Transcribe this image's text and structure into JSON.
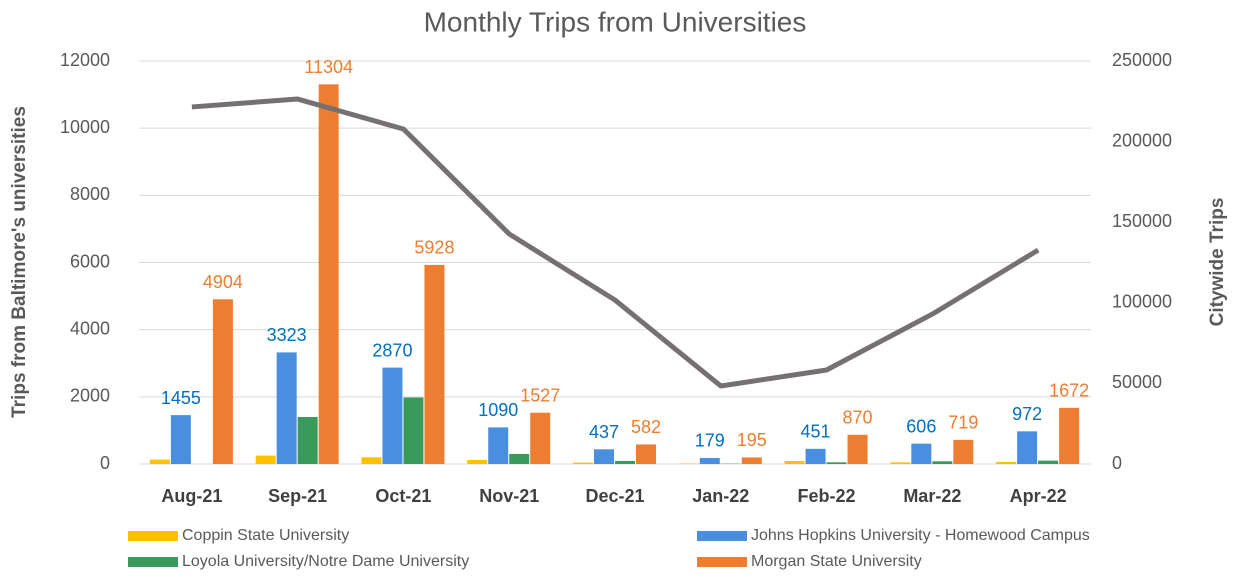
{
  "chart_data": {
    "type": "bar",
    "title": "Monthly Trips from Universities",
    "y_label": "Trips from Baltimore's universities",
    "y2_label": "Citywide Trips",
    "categories": [
      "Aug-21",
      "Sep-21",
      "Oct-21",
      "Nov-21",
      "Dec-21",
      "Jan-22",
      "Feb-22",
      "Mar-22",
      "Apr-22"
    ],
    "series": [
      {
        "name": "Coppin State University",
        "color": "#ffc000",
        "values": [
          130,
          250,
          200,
          120,
          40,
          15,
          90,
          50,
          60
        ]
      },
      {
        "name": "Johns Hopkins University - Homewood Campus",
        "color": "#4a8ee0",
        "label_color": "#0070c0",
        "labeled": true,
        "values": [
          1455,
          3323,
          2870,
          1090,
          437,
          179,
          451,
          606,
          972
        ]
      },
      {
        "name": "Loyola University/Notre Dame University",
        "color": "#3a9a5b",
        "values": [
          0,
          1400,
          1980,
          300,
          90,
          10,
          50,
          80,
          100
        ]
      },
      {
        "name": "Morgan State University",
        "color": "#ed7d31",
        "label_color": "#ed7d31",
        "labeled": true,
        "values": [
          4904,
          11304,
          5928,
          1527,
          582,
          195,
          870,
          719,
          1672
        ]
      },
      {
        "type": "line",
        "axis": "y2",
        "color": "#767171",
        "values": [
          221500,
          226400,
          207800,
          142700,
          101700,
          48400,
          58300,
          93000,
          132700
        ]
      }
    ],
    "ylim": [
      0,
      12000
    ],
    "yticks": [
      0,
      2000,
      4000,
      6000,
      8000,
      10000,
      12000
    ],
    "y2lim": [
      0,
      250000
    ],
    "y2ticks": [
      0,
      50000,
      100000,
      150000,
      200000,
      250000
    ],
    "grid": true,
    "legend": "bottom"
  }
}
